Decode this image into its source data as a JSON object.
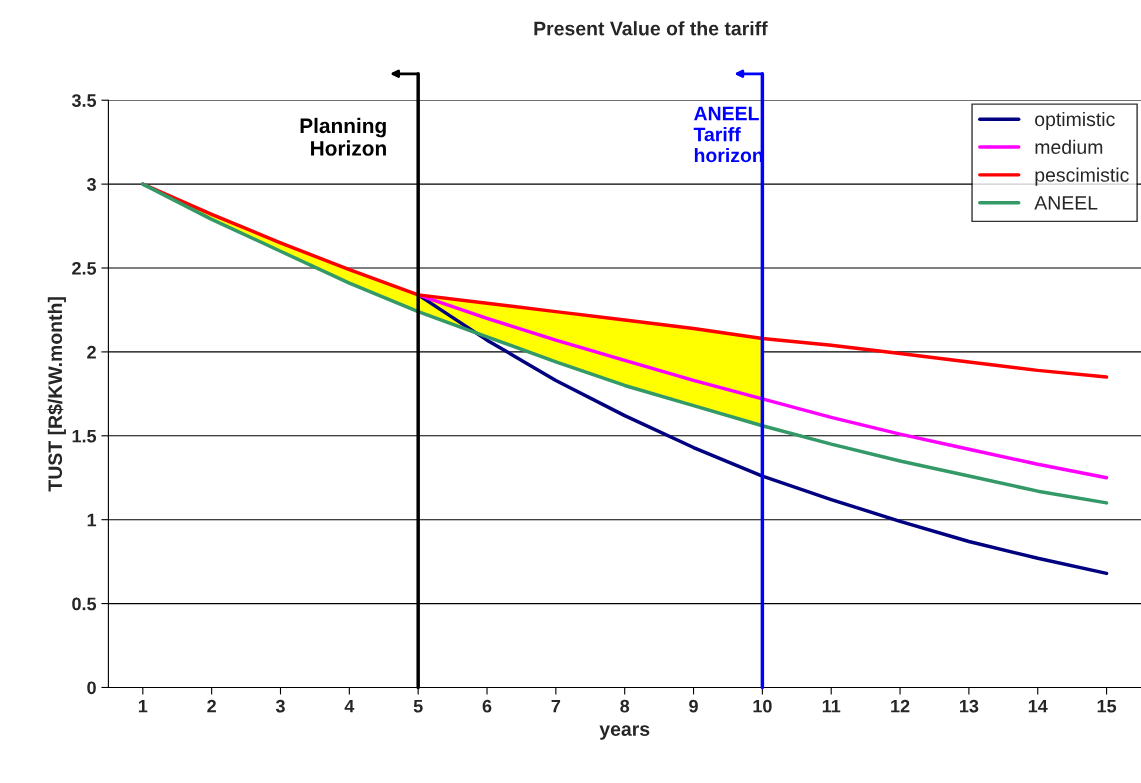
{
  "chart_data": {
    "type": "line",
    "title": "Present Value of the tariff",
    "xlabel": "years",
    "ylabel": "TUST [R$/KW.month]",
    "x": [
      1,
      2,
      3,
      4,
      5,
      6,
      7,
      8,
      9,
      10,
      11,
      12,
      13,
      14,
      15
    ],
    "series": [
      {
        "color": "#ffff00",
        "x": [
          1,
          2,
          3,
          4,
          5,
          6,
          7,
          8,
          9,
          10
        ],
        "values": [
          null,
          null,
          null,
          null,
          null,
          null,
          null,
          null,
          null,
          null
        ],
        "upper": [
          3.0,
          2.82,
          2.65,
          2.49,
          2.34,
          2.29,
          2.24,
          2.19,
          2.14,
          2.08
        ],
        "lower": [
          3.0,
          2.79,
          2.6,
          2.41,
          2.24,
          2.09,
          1.94,
          1.8,
          1.68,
          1.56
        ]
      },
      {
        "name": "optimistic",
        "color": "#000080",
        "values": [
          null,
          null,
          null,
          null,
          2.34,
          2.07,
          1.83,
          1.62,
          1.43,
          1.26,
          1.12,
          0.99,
          0.87,
          0.77,
          0.68
        ]
      },
      {
        "name": "medium",
        "color": "#ff00ff",
        "values": [
          null,
          null,
          null,
          null,
          2.34,
          2.2,
          2.07,
          1.95,
          1.83,
          1.72,
          1.61,
          1.51,
          1.42,
          1.33,
          1.25
        ]
      },
      {
        "name": "pescimistic",
        "color": "#ff0000",
        "values": [
          3.0,
          2.82,
          2.65,
          2.49,
          2.34,
          2.29,
          2.24,
          2.19,
          2.14,
          2.08,
          2.04,
          1.99,
          1.94,
          1.89,
          1.85
        ]
      },
      {
        "name": "ANEEL",
        "color": "#339966",
        "values": [
          3.0,
          2.79,
          2.6,
          2.41,
          2.24,
          2.09,
          1.94,
          1.8,
          1.68,
          1.56,
          1.45,
          1.35,
          1.26,
          1.17,
          1.1
        ]
      }
    ],
    "ref_lines": [
      {
        "axis": "x",
        "value": 5,
        "label": "Planning\nHorizon",
        "color": "#000000"
      },
      {
        "axis": "x",
        "value": 10,
        "label": "ANEEL\nTariff\nhorizon",
        "color": "#0000ff"
      }
    ],
    "xlim": [
      0.5,
      15.5
    ],
    "xticks": [
      1,
      2,
      3,
      4,
      5,
      6,
      7,
      8,
      9,
      10,
      11,
      12,
      13,
      14,
      15
    ],
    "ylim": [
      0,
      3.5
    ],
    "yticks": [
      0,
      0.5,
      1,
      1.5,
      2,
      2.5,
      3,
      3.5
    ],
    "grid": "y",
    "legend": "top right",
    "marker": "none",
    "line_style": "solid"
  }
}
